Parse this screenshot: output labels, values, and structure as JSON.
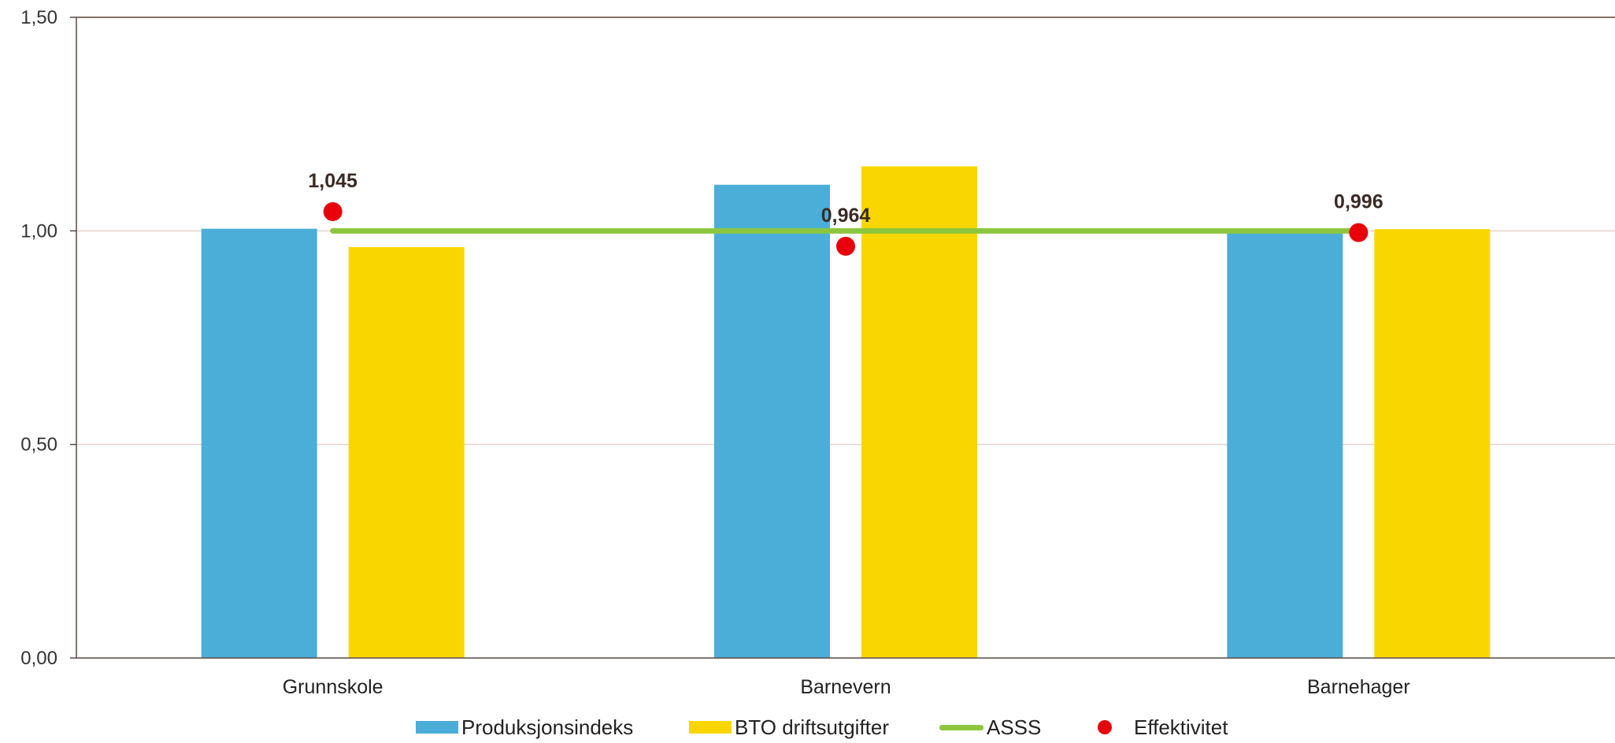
{
  "chart_data": {
    "type": "bar",
    "title": "",
    "xlabel": "",
    "ylabel": "",
    "ylim": [
      0,
      1.5
    ],
    "yticks": [
      "0,00",
      "0,50",
      "1,00",
      "1,50"
    ],
    "ytick_values": [
      0,
      0.5,
      1.0,
      1.5
    ],
    "categories": [
      "Grunnskole",
      "Barnevern",
      "Barnehager"
    ],
    "series": [
      {
        "name": "Produksjonsindeks",
        "type": "bar",
        "color": "#4aaed9",
        "values": [
          1.005,
          1.108,
          1.0
        ]
      },
      {
        "name": "BTO driftsutgifter",
        "type": "bar",
        "color": "#fad600",
        "values": [
          0.962,
          1.151,
          1.004
        ]
      },
      {
        "name": "ASSS",
        "type": "line",
        "color": "#8cc63f",
        "values": [
          1.0,
          1.0,
          1.0
        ]
      },
      {
        "name": "Effektivitet",
        "type": "scatter",
        "color": "#e8000b",
        "values": [
          1.045,
          0.964,
          0.996
        ],
        "labels": [
          "1,045",
          "0,964",
          "0,996"
        ]
      }
    ],
    "grid": true,
    "legend_position": "bottom"
  },
  "colors": {
    "axis": "#5a4a42",
    "grid": "#e6d2cc"
  }
}
